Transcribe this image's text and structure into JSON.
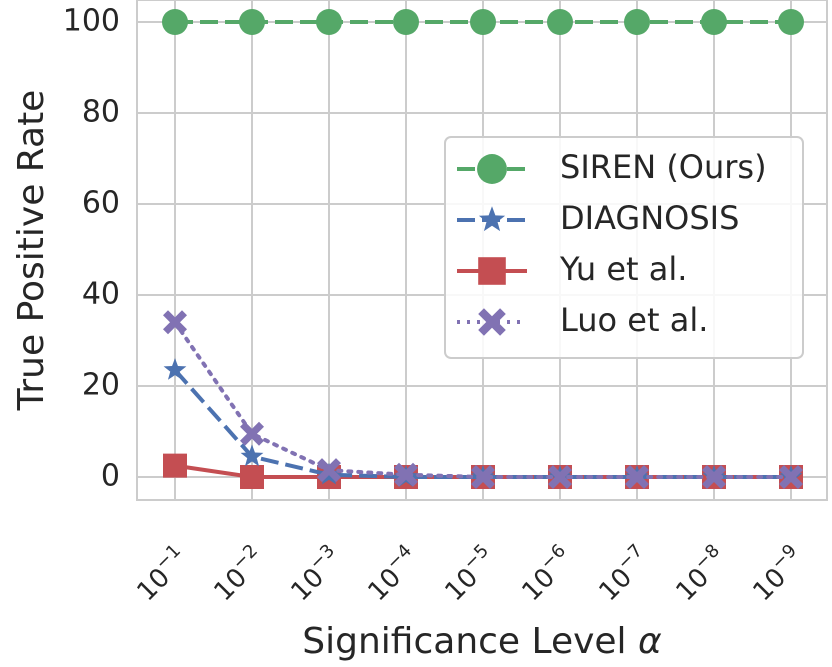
{
  "chart_data": {
    "type": "line",
    "xlabel": "Significance Level",
    "xlabel_symbol": "α",
    "ylabel": "True Positive Rate",
    "categories": [
      "10^-1",
      "10^-2",
      "10^-3",
      "10^-4",
      "10^-5",
      "10^-6",
      "10^-7",
      "10^-8",
      "10^-9"
    ],
    "x_tick_base": "10",
    "x_tick_exponents": [
      "−1",
      "−2",
      "−3",
      "−4",
      "−5",
      "−6",
      "−7",
      "−8",
      "−9"
    ],
    "ylim": [
      -3,
      102
    ],
    "y_ticks": [
      0,
      20,
      40,
      60,
      80,
      100
    ],
    "grid": true,
    "legend_position": "center-right",
    "series": [
      {
        "name": "SIREN (Ours)",
        "values": [
          100,
          100,
          100,
          100,
          100,
          100,
          100,
          100,
          100
        ],
        "color": "#55a868",
        "marker": "circle",
        "linestyle": "dashed"
      },
      {
        "name": "DIAGNOSIS",
        "values": [
          23.5,
          4.5,
          0.5,
          0,
          0,
          0,
          0,
          0,
          0
        ],
        "color": "#4c72b0",
        "marker": "star",
        "linestyle": "dashed"
      },
      {
        "name": "Yu et al.",
        "values": [
          2.5,
          0,
          0,
          0,
          0,
          0,
          0,
          0,
          0
        ],
        "color": "#c44e52",
        "marker": "square",
        "linestyle": "solid"
      },
      {
        "name": "Luo et al.",
        "values": [
          34,
          9.5,
          1.5,
          0.5,
          0,
          0,
          0,
          0,
          0
        ],
        "color": "#8172b3",
        "marker": "x",
        "linestyle": "dotted"
      }
    ]
  }
}
